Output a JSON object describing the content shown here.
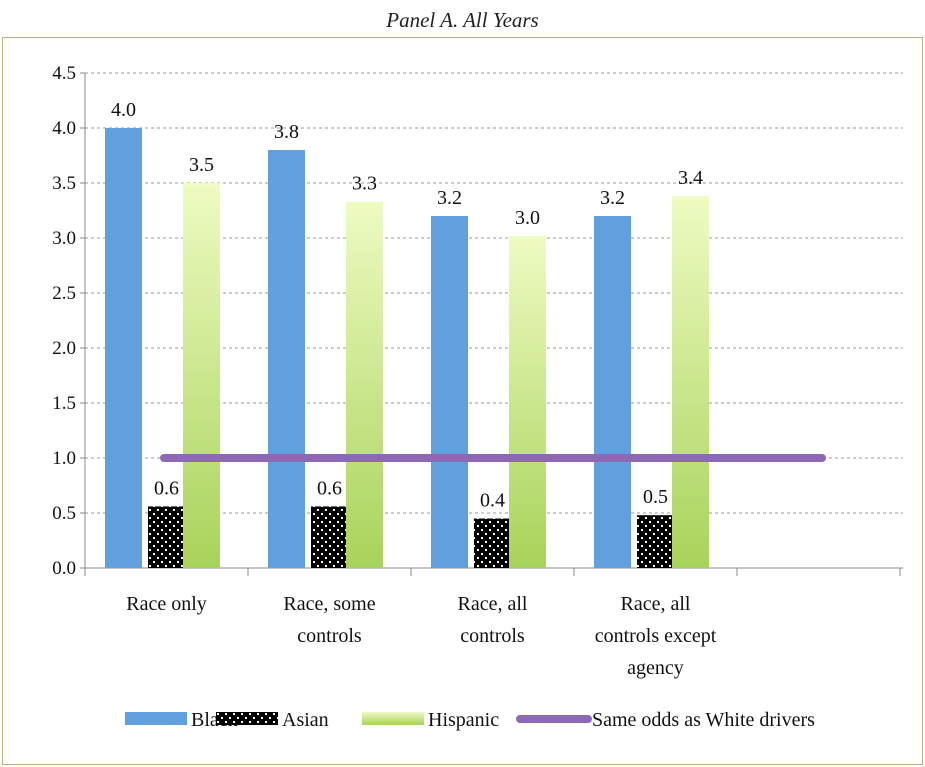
{
  "chart_data": {
    "type": "bar",
    "title": "Panel A. All Years",
    "categories": [
      [
        "Race only"
      ],
      [
        "Race, some",
        "controls"
      ],
      [
        "Race, all",
        "controls"
      ],
      [
        "Race, all",
        "controls except",
        "agency"
      ]
    ],
    "series": [
      {
        "name": "Black",
        "values": [
          4.0,
          3.8,
          3.2,
          3.2
        ],
        "labels": [
          "4.0",
          "3.8",
          "3.2",
          "3.2"
        ],
        "color": "#629fdf",
        "pattern": "solid"
      },
      {
        "name": "Asian",
        "values": [
          0.56,
          0.56,
          0.45,
          0.48
        ],
        "labels": [
          "0.6",
          "0.6",
          "0.4",
          "0.5"
        ],
        "color": "#000000",
        "pattern": "dots"
      },
      {
        "name": "Hispanic",
        "values": [
          3.5,
          3.33,
          3.02,
          3.38
        ],
        "labels": [
          "3.5",
          "3.3",
          "3.0",
          "3.4"
        ],
        "color": "#b6dc6c",
        "pattern": "gradient"
      }
    ],
    "reference_line": {
      "name": "Same odds as White drivers",
      "value": 1.0,
      "color": "#8d69b5"
    },
    "y_ticks": [
      "0.0",
      "0.5",
      "1.0",
      "1.5",
      "2.0",
      "2.5",
      "3.0",
      "3.5",
      "4.0",
      "4.5"
    ],
    "ylim": [
      0,
      4.5
    ],
    "grid": true,
    "legend_position": "bottom"
  }
}
